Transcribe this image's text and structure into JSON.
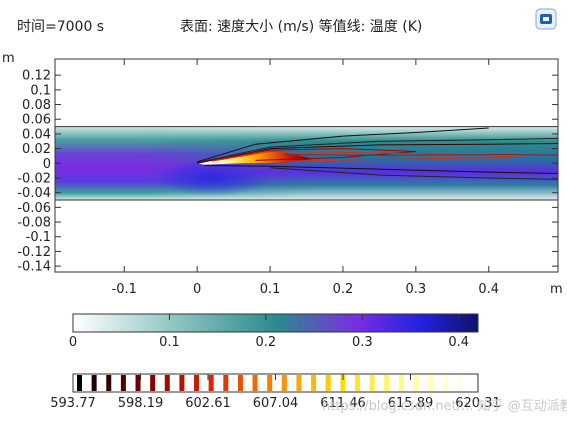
{
  "header": {
    "time_label": "时间=7000 s",
    "plot_title": "表面: 速度大小 (m/s)  等值线: 温度 (K)"
  },
  "icons": {
    "logo": "comsol-logo-icon"
  },
  "chart_data": {
    "type": "heatmap",
    "xlabel": "m",
    "ylabel": "m",
    "xlim": [
      -0.195,
      0.495
    ],
    "ylim": [
      -0.148,
      0.142
    ],
    "x_ticks": [
      -0.1,
      0,
      0.1,
      0.2,
      0.3,
      0.4
    ],
    "x_tick_labels": [
      "-0.1",
      "0",
      "0.1",
      "0.2",
      "0.3",
      "0.4"
    ],
    "y_ticks": [
      0.12,
      0.1,
      0.08,
      0.06,
      0.04,
      0.02,
      0,
      -0.02,
      -0.04,
      -0.06,
      -0.08,
      -0.1,
      -0.12,
      -0.14
    ],
    "y_tick_labels": [
      "0.12",
      "0.1",
      "0.08",
      "0.06",
      "0.04",
      "0.02",
      "0",
      "-0.02",
      "-0.04",
      "-0.06",
      "-0.08",
      "-0.1",
      "-0.12",
      "-0.14"
    ],
    "channel_y_range": [
      -0.05,
      0.05
    ],
    "surface": {
      "quantity": "速度大小",
      "unit": "m/s",
      "range": [
        0,
        0.42
      ],
      "colorbar_ticks": [
        0,
        0.1,
        0.2,
        0.3,
        0.4
      ],
      "colorbar_labels": [
        "0",
        "0.1",
        "0.2",
        "0.3",
        "0.4"
      ],
      "colormap": [
        "#ffffff",
        "#2b8c8c",
        "#7a2ee0",
        "#2222e0",
        "#10106a"
      ]
    },
    "contour": {
      "quantity": "温度",
      "unit": "K",
      "levels_labeled": [
        593.77,
        598.19,
        602.61,
        607.04,
        611.46,
        615.89,
        620.31
      ],
      "colorbar_labels": [
        "593.77",
        "598.19",
        "602.61",
        "607.04",
        "611.46",
        "615.89",
        "620.31"
      ],
      "colormap": [
        "#000000",
        "#7a0000",
        "#e02000",
        "#ff8800",
        "#ffdd00",
        "#ffff99",
        "#ffffff"
      ]
    }
  },
  "watermark": "https://blog.csdn.net/... 知乎 @互动派教育"
}
